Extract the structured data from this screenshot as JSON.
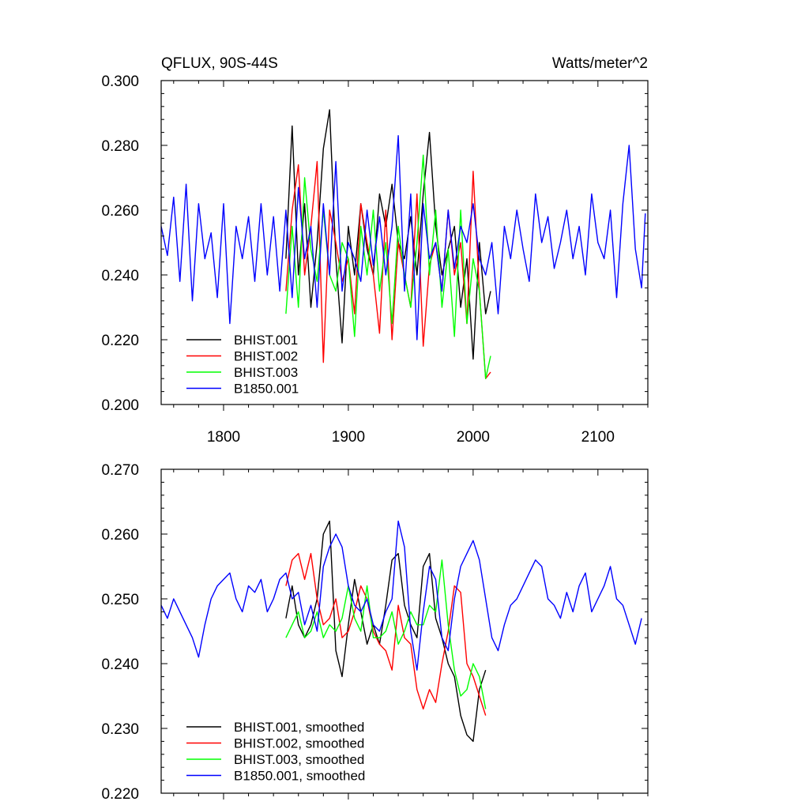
{
  "chart_data": [
    {
      "type": "line",
      "title_left": "QFLUX, 90S-44S",
      "title_right": "Watts/meter^2",
      "ylim": [
        0.2,
        0.3
      ],
      "yticks": [
        0.2,
        0.22,
        0.24,
        0.26,
        0.28,
        0.3
      ],
      "ytick_labels": [
        "0.200",
        "0.220",
        "0.240",
        "0.260",
        "0.280",
        "0.300"
      ],
      "xlim": [
        1750,
        2140
      ],
      "xticks": [
        1800,
        1900,
        2000,
        2100
      ],
      "xtick_labels": [
        "1800",
        "1900",
        "2000",
        "2100"
      ],
      "legend_position": "bottom-left",
      "series": [
        {
          "name": "BHIST.001",
          "color": "#000000",
          "x": [
            1850,
            1855,
            1860,
            1865,
            1870,
            1875,
            1880,
            1885,
            1890,
            1895,
            1900,
            1905,
            1910,
            1915,
            1920,
            1925,
            1930,
            1935,
            1940,
            1945,
            1950,
            1955,
            1960,
            1965,
            1970,
            1975,
            1980,
            1985,
            1990,
            1995,
            2000,
            2005,
            2010,
            2014
          ],
          "y": [
            0.245,
            0.286,
            0.24,
            0.262,
            0.23,
            0.25,
            0.279,
            0.291,
            0.245,
            0.219,
            0.255,
            0.24,
            0.262,
            0.248,
            0.24,
            0.265,
            0.255,
            0.268,
            0.25,
            0.245,
            0.258,
            0.24,
            0.265,
            0.284,
            0.255,
            0.24,
            0.248,
            0.255,
            0.23,
            0.245,
            0.214,
            0.25,
            0.228,
            0.235
          ]
        },
        {
          "name": "BHIST.002",
          "color": "#ff0000",
          "x": [
            1850,
            1855,
            1860,
            1865,
            1870,
            1875,
            1880,
            1885,
            1890,
            1895,
            1900,
            1905,
            1910,
            1915,
            1920,
            1925,
            1930,
            1935,
            1940,
            1945,
            1950,
            1955,
            1960,
            1965,
            1970,
            1975,
            1980,
            1985,
            1990,
            1995,
            2000,
            2005,
            2010,
            2014
          ],
          "y": [
            0.235,
            0.26,
            0.274,
            0.24,
            0.255,
            0.275,
            0.213,
            0.26,
            0.25,
            0.238,
            0.245,
            0.228,
            0.262,
            0.25,
            0.24,
            0.222,
            0.26,
            0.22,
            0.25,
            0.24,
            0.23,
            0.265,
            0.218,
            0.243,
            0.25,
            0.235,
            0.26,
            0.24,
            0.25,
            0.225,
            0.272,
            0.235,
            0.208,
            0.21
          ]
        },
        {
          "name": "BHIST.003",
          "color": "#00ff00",
          "x": [
            1850,
            1855,
            1860,
            1865,
            1870,
            1875,
            1880,
            1885,
            1890,
            1895,
            1900,
            1905,
            1910,
            1915,
            1920,
            1925,
            1930,
            1935,
            1940,
            1945,
            1950,
            1955,
            1960,
            1965,
            1970,
            1975,
            1980,
            1985,
            1990,
            1995,
            2000,
            2005,
            2010,
            2014
          ],
          "y": [
            0.228,
            0.255,
            0.23,
            0.27,
            0.248,
            0.238,
            0.26,
            0.24,
            0.235,
            0.25,
            0.245,
            0.221,
            0.255,
            0.24,
            0.26,
            0.235,
            0.25,
            0.225,
            0.255,
            0.24,
            0.23,
            0.25,
            0.277,
            0.24,
            0.26,
            0.23,
            0.248,
            0.221,
            0.26,
            0.225,
            0.245,
            0.235,
            0.208,
            0.215
          ]
        },
        {
          "name": "B1850.001",
          "color": "#0000ff",
          "x": [
            1750,
            1755,
            1760,
            1765,
            1770,
            1775,
            1780,
            1785,
            1790,
            1795,
            1800,
            1805,
            1810,
            1815,
            1820,
            1825,
            1830,
            1835,
            1840,
            1845,
            1850,
            1855,
            1860,
            1865,
            1870,
            1875,
            1880,
            1885,
            1890,
            1895,
            1900,
            1905,
            1910,
            1915,
            1920,
            1925,
            1930,
            1935,
            1940,
            1945,
            1950,
            1955,
            1960,
            1965,
            1970,
            1975,
            1980,
            1985,
            1990,
            1995,
            2000,
            2005,
            2010,
            2015,
            2020,
            2025,
            2030,
            2035,
            2040,
            2045,
            2050,
            2055,
            2060,
            2065,
            2070,
            2075,
            2080,
            2085,
            2090,
            2095,
            2100,
            2105,
            2110,
            2115,
            2120,
            2125,
            2130,
            2135,
            2138
          ],
          "y": [
            0.255,
            0.246,
            0.264,
            0.238,
            0.268,
            0.232,
            0.262,
            0.245,
            0.253,
            0.233,
            0.262,
            0.225,
            0.255,
            0.245,
            0.258,
            0.238,
            0.262,
            0.24,
            0.258,
            0.235,
            0.26,
            0.233,
            0.267,
            0.245,
            0.255,
            0.23,
            0.262,
            0.24,
            0.275,
            0.235,
            0.25,
            0.245,
            0.238,
            0.26,
            0.243,
            0.258,
            0.24,
            0.255,
            0.283,
            0.235,
            0.265,
            0.22,
            0.262,
            0.245,
            0.25,
            0.235,
            0.26,
            0.242,
            0.255,
            0.25,
            0.262,
            0.245,
            0.24,
            0.25,
            0.228,
            0.255,
            0.245,
            0.26,
            0.248,
            0.238,
            0.265,
            0.25,
            0.258,
            0.242,
            0.25,
            0.26,
            0.245,
            0.255,
            0.24,
            0.265,
            0.25,
            0.245,
            0.26,
            0.233,
            0.262,
            0.28,
            0.248,
            0.236,
            0.259
          ]
        }
      ]
    },
    {
      "type": "line",
      "ylim": [
        0.22,
        0.27
      ],
      "yticks": [
        0.22,
        0.23,
        0.24,
        0.25,
        0.26,
        0.27
      ],
      "ytick_labels": [
        "0.220",
        "0.230",
        "0.240",
        "0.250",
        "0.260",
        "0.270"
      ],
      "xlim": [
        1750,
        2140
      ],
      "xticks": [
        1800,
        1900,
        2000,
        2100
      ],
      "legend_position": "bottom-left",
      "series": [
        {
          "name": "BHIST.001, smoothed",
          "color": "#000000",
          "x": [
            1850,
            1855,
            1860,
            1865,
            1870,
            1875,
            1880,
            1885,
            1890,
            1895,
            1900,
            1905,
            1910,
            1915,
            1920,
            1925,
            1930,
            1935,
            1940,
            1945,
            1950,
            1955,
            1960,
            1965,
            1970,
            1975,
            1980,
            1985,
            1990,
            1995,
            2000,
            2005,
            2010
          ],
          "y": [
            0.247,
            0.252,
            0.246,
            0.244,
            0.246,
            0.25,
            0.26,
            0.262,
            0.242,
            0.238,
            0.246,
            0.253,
            0.248,
            0.243,
            0.246,
            0.243,
            0.249,
            0.256,
            0.257,
            0.249,
            0.246,
            0.244,
            0.255,
            0.257,
            0.247,
            0.244,
            0.24,
            0.238,
            0.232,
            0.229,
            0.228,
            0.236,
            0.239
          ]
        },
        {
          "name": "BHIST.002, smoothed",
          "color": "#ff0000",
          "x": [
            1850,
            1855,
            1860,
            1865,
            1870,
            1875,
            1880,
            1885,
            1890,
            1895,
            1900,
            1905,
            1910,
            1915,
            1920,
            1925,
            1930,
            1935,
            1940,
            1945,
            1950,
            1955,
            1960,
            1965,
            1970,
            1975,
            1980,
            1985,
            1990,
            1995,
            2000,
            2005,
            2010
          ],
          "y": [
            0.252,
            0.256,
            0.257,
            0.253,
            0.257,
            0.25,
            0.246,
            0.247,
            0.25,
            0.244,
            0.245,
            0.248,
            0.252,
            0.25,
            0.245,
            0.243,
            0.242,
            0.239,
            0.249,
            0.244,
            0.243,
            0.236,
            0.233,
            0.236,
            0.234,
            0.24,
            0.245,
            0.252,
            0.251,
            0.24,
            0.238,
            0.235,
            0.232
          ]
        },
        {
          "name": "BHIST.003, smoothed",
          "color": "#00ff00",
          "x": [
            1850,
            1855,
            1860,
            1865,
            1870,
            1875,
            1880,
            1885,
            1890,
            1895,
            1900,
            1905,
            1910,
            1915,
            1920,
            1925,
            1930,
            1935,
            1940,
            1945,
            1950,
            1955,
            1960,
            1965,
            1970,
            1975,
            1980,
            1985,
            1990,
            1995,
            2000,
            2005,
            2010
          ],
          "y": [
            0.244,
            0.246,
            0.248,
            0.244,
            0.245,
            0.248,
            0.244,
            0.246,
            0.245,
            0.247,
            0.252,
            0.247,
            0.245,
            0.252,
            0.244,
            0.244,
            0.245,
            0.248,
            0.243,
            0.245,
            0.248,
            0.246,
            0.246,
            0.249,
            0.248,
            0.256,
            0.246,
            0.239,
            0.235,
            0.236,
            0.24,
            0.238,
            0.233
          ]
        },
        {
          "name": "B1850.001, smoothed",
          "color": "#0000ff",
          "x": [
            1750,
            1755,
            1760,
            1765,
            1770,
            1775,
            1780,
            1785,
            1790,
            1795,
            1800,
            1805,
            1810,
            1815,
            1820,
            1825,
            1830,
            1835,
            1840,
            1845,
            1850,
            1855,
            1860,
            1865,
            1870,
            1875,
            1880,
            1885,
            1890,
            1895,
            1900,
            1905,
            1910,
            1915,
            1920,
            1925,
            1930,
            1935,
            1940,
            1945,
            1950,
            1955,
            1960,
            1965,
            1970,
            1975,
            1980,
            1985,
            1990,
            1995,
            2000,
            2005,
            2010,
            2015,
            2020,
            2025,
            2030,
            2035,
            2040,
            2045,
            2050,
            2055,
            2060,
            2065,
            2070,
            2075,
            2080,
            2085,
            2090,
            2095,
            2100,
            2105,
            2110,
            2115,
            2120,
            2125,
            2130,
            2135
          ],
          "y": [
            0.249,
            0.247,
            0.25,
            0.248,
            0.246,
            0.244,
            0.241,
            0.246,
            0.25,
            0.252,
            0.253,
            0.254,
            0.25,
            0.248,
            0.252,
            0.251,
            0.253,
            0.248,
            0.25,
            0.253,
            0.254,
            0.25,
            0.251,
            0.246,
            0.249,
            0.245,
            0.255,
            0.258,
            0.26,
            0.258,
            0.252,
            0.249,
            0.248,
            0.25,
            0.246,
            0.245,
            0.248,
            0.25,
            0.262,
            0.258,
            0.245,
            0.239,
            0.248,
            0.255,
            0.253,
            0.244,
            0.242,
            0.25,
            0.255,
            0.257,
            0.259,
            0.256,
            0.25,
            0.244,
            0.242,
            0.246,
            0.249,
            0.25,
            0.252,
            0.254,
            0.256,
            0.255,
            0.25,
            0.249,
            0.247,
            0.251,
            0.248,
            0.252,
            0.254,
            0.248,
            0.25,
            0.252,
            0.255,
            0.25,
            0.249,
            0.246,
            0.243,
            0.247
          ]
        }
      ]
    }
  ]
}
